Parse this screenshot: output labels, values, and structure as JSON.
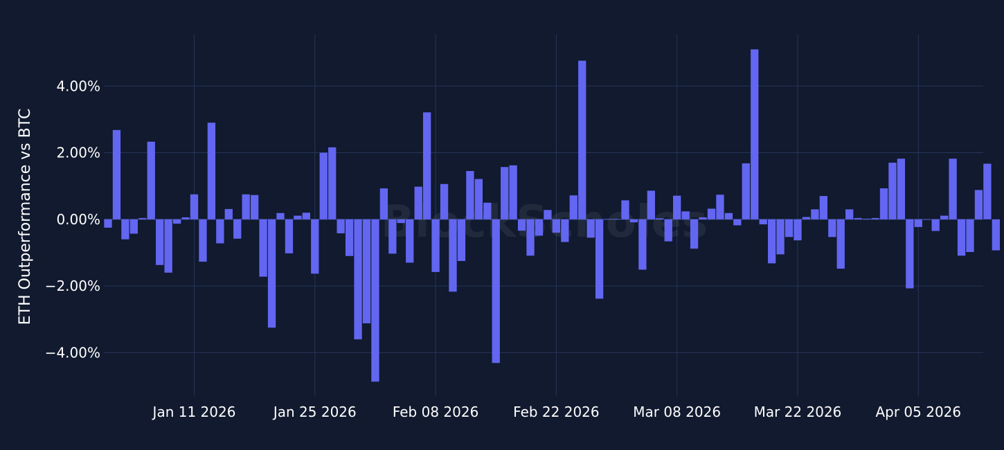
{
  "chart_data": {
    "type": "bar",
    "title": "",
    "ylabel": "ETH Outperformance vs BTC",
    "xlabel": "",
    "watermark": "BlockScholes",
    "bar_color": "#6366f1",
    "background": "#111a2e",
    "grid_color": "#27345a",
    "ylim": [
      -5.3,
      5.75
    ],
    "y_ticks": [
      {
        "value": 4,
        "label": "4.00%"
      },
      {
        "value": 2,
        "label": "2.00%"
      },
      {
        "value": 0,
        "label": "0.00%"
      },
      {
        "value": -2,
        "label": "−2.00%"
      },
      {
        "value": -4,
        "label": "−4.00%"
      }
    ],
    "x_start_date": "2026-01-01",
    "x_ticks": [
      {
        "date": "2026-01-11",
        "label": "Jan 11 2026"
      },
      {
        "date": "2026-01-25",
        "label": "Jan 25 2026"
      },
      {
        "date": "2026-02-08",
        "label": "Feb 08 2026"
      },
      {
        "date": "2026-02-22",
        "label": "Feb 22 2026"
      },
      {
        "date": "2026-03-08",
        "label": "Mar 08 2026"
      },
      {
        "date": "2026-03-22",
        "label": "Mar 22 2026"
      },
      {
        "date": "2026-04-05",
        "label": "Apr 05 2026"
      }
    ],
    "unit": "%",
    "values": [
      -0.25,
      2.68,
      -0.6,
      -0.43,
      0.04,
      2.33,
      -1.37,
      -1.6,
      -0.13,
      0.06,
      0.75,
      -1.27,
      2.9,
      -0.72,
      0.31,
      -0.58,
      0.75,
      0.73,
      -1.72,
      -3.25,
      0.19,
      -1.02,
      0.11,
      0.2,
      -1.63,
      2.0,
      2.16,
      -0.42,
      -1.1,
      -3.6,
      -3.12,
      -4.87,
      0.93,
      -1.03,
      -0.11,
      -1.3,
      0.98,
      3.21,
      -1.58,
      1.06,
      -2.17,
      -1.25,
      1.45,
      1.21,
      0.5,
      -4.31,
      1.57,
      1.62,
      -0.34,
      -1.09,
      -0.49,
      0.28,
      -0.4,
      -0.68,
      0.72,
      4.76,
      -0.55,
      -2.38,
      0.01,
      0.01,
      0.57,
      -0.09,
      -1.51,
      0.86,
      0.03,
      -0.66,
      0.71,
      0.24,
      -0.88,
      0.06,
      0.32,
      0.74,
      0.19,
      -0.18,
      1.68,
      5.1,
      -0.15,
      -1.32,
      -1.05,
      -0.53,
      -0.63,
      0.07,
      0.3,
      0.7,
      -0.53,
      -1.48,
      0.3,
      0.04,
      0.02,
      0.04,
      0.93,
      1.7,
      1.82,
      -2.07,
      -0.23,
      0.0,
      -0.35,
      0.11,
      1.82,
      -1.09,
      -0.98,
      0.88,
      1.67,
      -0.93
    ]
  }
}
